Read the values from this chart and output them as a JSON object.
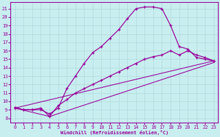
{
  "bg_color": "#c8eef0",
  "line_color": "#990099",
  "grid_color": "#b0d8da",
  "xlabel": "Windchill (Refroidissement éolien,°C)",
  "xlim": [
    -0.5,
    23.5
  ],
  "ylim": [
    7.5,
    21.8
  ],
  "xticks": [
    0,
    1,
    2,
    3,
    4,
    5,
    6,
    7,
    8,
    9,
    10,
    11,
    12,
    13,
    14,
    15,
    16,
    17,
    18,
    19,
    20,
    21,
    22,
    23
  ],
  "yticks": [
    8,
    9,
    10,
    11,
    12,
    13,
    14,
    15,
    16,
    17,
    18,
    19,
    20,
    21
  ],
  "curve1_x": [
    0,
    1,
    2,
    3,
    4,
    5,
    6,
    7,
    8,
    9,
    10,
    11,
    12,
    13,
    14,
    15,
    16,
    17,
    18,
    19,
    20,
    21,
    22,
    23
  ],
  "curve1_y": [
    9.2,
    9.0,
    9.0,
    9.0,
    8.5,
    9.2,
    11.5,
    13.0,
    14.5,
    15.8,
    16.5,
    17.5,
    18.5,
    19.8,
    21.0,
    21.2,
    21.2,
    21.0,
    19.0,
    16.5,
    16.2,
    15.2,
    15.0,
    14.8
  ],
  "curve2_x": [
    0,
    1,
    2,
    3,
    4,
    5,
    6,
    7,
    8,
    9,
    10,
    11,
    12,
    13,
    14,
    15,
    16,
    17,
    18,
    19,
    20,
    21,
    22,
    23
  ],
  "curve2_y": [
    9.3,
    9.0,
    9.0,
    9.2,
    8.2,
    9.5,
    10.2,
    11.0,
    11.5,
    12.0,
    12.5,
    13.0,
    13.5,
    14.0,
    14.5,
    15.0,
    15.3,
    15.5,
    16.0,
    15.5,
    16.0,
    15.5,
    15.2,
    14.8
  ],
  "line1_x": [
    0,
    23
  ],
  "line1_y": [
    9.2,
    14.8
  ],
  "line2_x": [
    0,
    4,
    23
  ],
  "line2_y": [
    9.2,
    8.2,
    14.6
  ]
}
